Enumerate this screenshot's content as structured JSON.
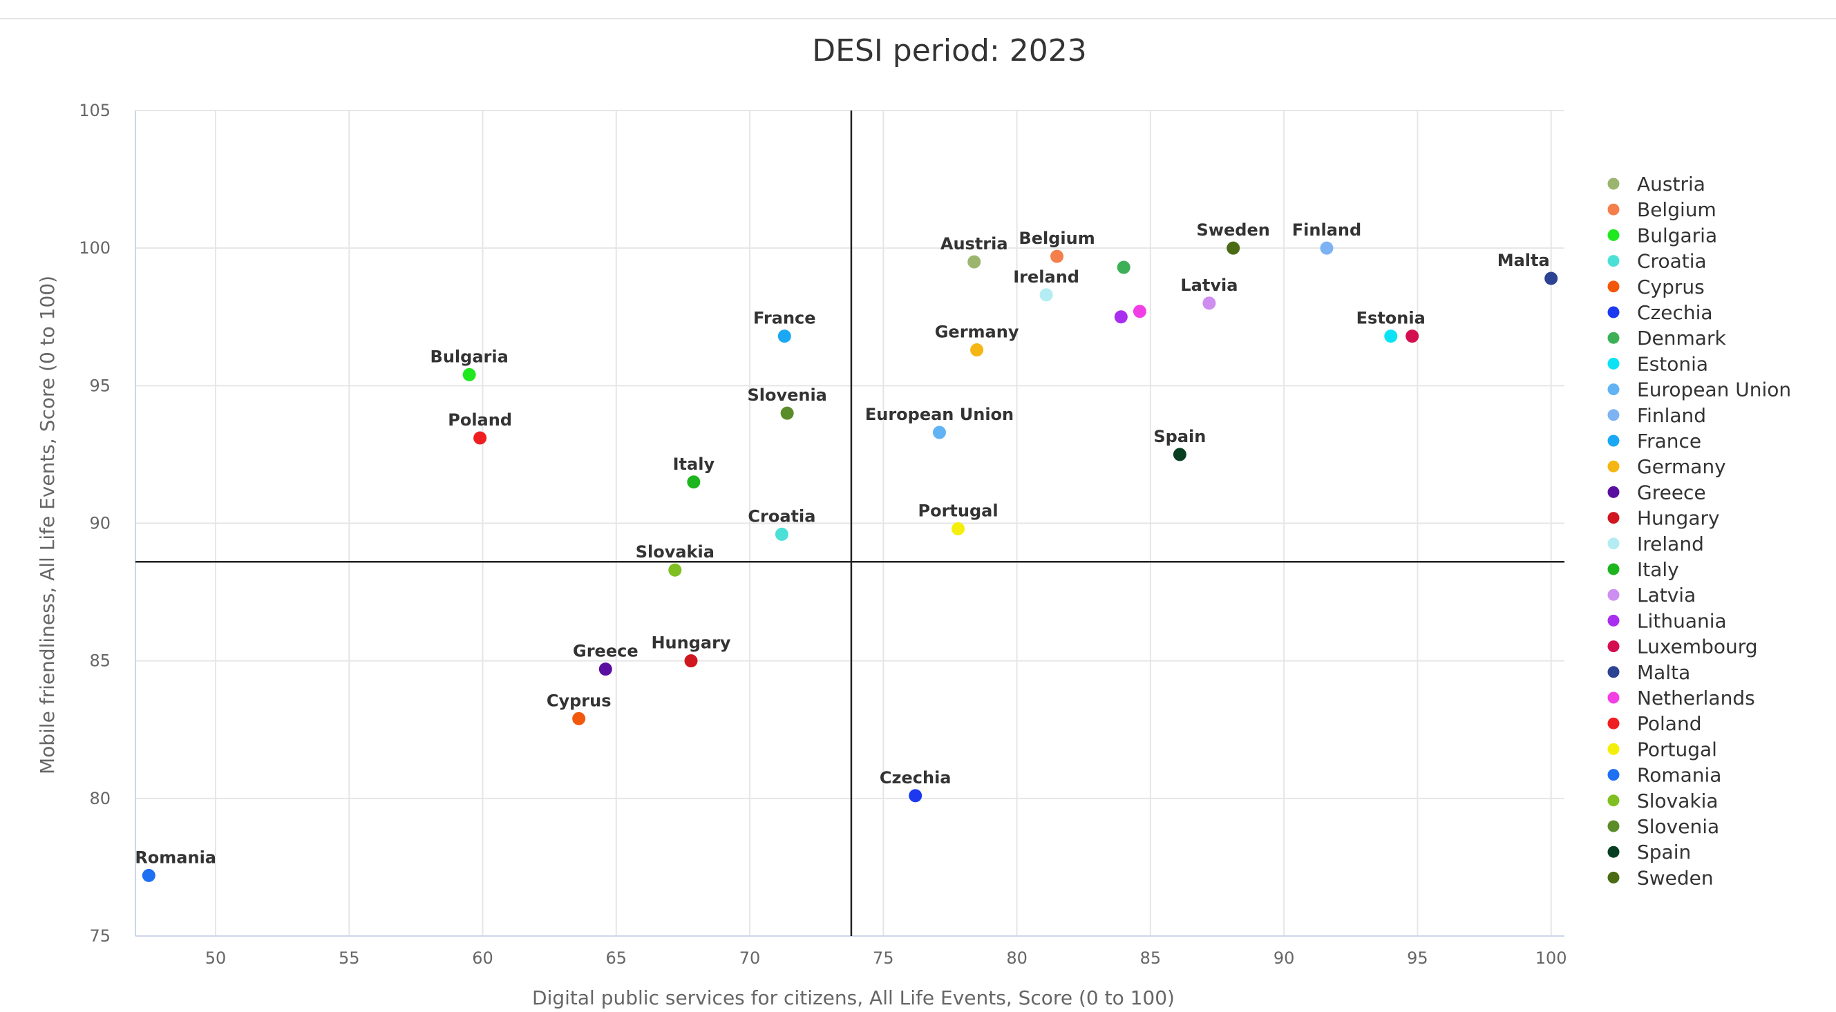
{
  "chart_data": {
    "type": "scatter",
    "title": "DESI period: 2023",
    "xlabel": "Digital public services for citizens, All Life Events, Score (0 to 100)",
    "ylabel": "Mobile friendliness, All Life Events, Score (0 to 100)",
    "xlim": [
      47,
      100.5
    ],
    "ylim": [
      75,
      105
    ],
    "xticks": [
      50,
      55,
      60,
      65,
      70,
      75,
      80,
      85,
      90,
      95,
      100
    ],
    "yticks": [
      75,
      80,
      85,
      90,
      95,
      100,
      105
    ],
    "reference_lines": {
      "x": 73.8,
      "y": 88.6
    },
    "grid": true,
    "legend_position": "right",
    "points": [
      {
        "name": "Austria",
        "x": 78.4,
        "y": 99.5,
        "color": "#9bb56e"
      },
      {
        "name": "Belgium",
        "x": 81.5,
        "y": 99.7,
        "color": "#f47f4c"
      },
      {
        "name": "Bulgaria",
        "x": 59.5,
        "y": 95.4,
        "color": "#1fe81f"
      },
      {
        "name": "Croatia",
        "x": 71.2,
        "y": 89.6,
        "color": "#4be0d6"
      },
      {
        "name": "Cyprus",
        "x": 63.6,
        "y": 82.9,
        "color": "#f2580b"
      },
      {
        "name": "Czechia",
        "x": 76.2,
        "y": 80.1,
        "color": "#1c39f0"
      },
      {
        "name": "Denmark",
        "x": 84.0,
        "y": 99.3,
        "color": "#3daf57"
      },
      {
        "name": "Estonia",
        "x": 94.0,
        "y": 96.8,
        "color": "#0be3f4"
      },
      {
        "name": "European Union",
        "x": 77.1,
        "y": 93.3,
        "color": "#62b3f4"
      },
      {
        "name": "Finland",
        "x": 91.6,
        "y": 100.0,
        "color": "#7db3f2"
      },
      {
        "name": "France",
        "x": 71.3,
        "y": 96.8,
        "color": "#1aa8f5"
      },
      {
        "name": "Germany",
        "x": 78.5,
        "y": 96.3,
        "color": "#f5b512"
      },
      {
        "name": "Greece",
        "x": 64.6,
        "y": 84.7,
        "color": "#5a0fa0"
      },
      {
        "name": "Hungary",
        "x": 67.8,
        "y": 85.0,
        "color": "#d0161f"
      },
      {
        "name": "Ireland",
        "x": 81.1,
        "y": 98.3,
        "color": "#b3ecf2"
      },
      {
        "name": "Italy",
        "x": 67.9,
        "y": 91.5,
        "color": "#1db51d"
      },
      {
        "name": "Latvia",
        "x": 87.2,
        "y": 98.0,
        "color": "#cd8ef0"
      },
      {
        "name": "Lithuania",
        "x": 83.9,
        "y": 97.5,
        "color": "#a82ef0"
      },
      {
        "name": "Luxembourg",
        "x": 94.8,
        "y": 96.8,
        "color": "#d40f50"
      },
      {
        "name": "Malta",
        "x": 100.0,
        "y": 98.9,
        "color": "#2c4293"
      },
      {
        "name": "Netherlands",
        "x": 84.6,
        "y": 97.7,
        "color": "#f23fe5"
      },
      {
        "name": "Poland",
        "x": 59.9,
        "y": 93.1,
        "color": "#ef1f21"
      },
      {
        "name": "Portugal",
        "x": 77.8,
        "y": 89.8,
        "color": "#f4ef0a"
      },
      {
        "name": "Romania",
        "x": 47.5,
        "y": 77.2,
        "color": "#1e70f2"
      },
      {
        "name": "Slovakia",
        "x": 67.2,
        "y": 88.3,
        "color": "#7fbf21"
      },
      {
        "name": "Slovenia",
        "x": 71.4,
        "y": 94.0,
        "color": "#5b8c2a"
      },
      {
        "name": "Spain",
        "x": 86.1,
        "y": 92.5,
        "color": "#083f22"
      },
      {
        "name": "Sweden",
        "x": 88.1,
        "y": 100.0,
        "color": "#4a6b14"
      }
    ]
  }
}
